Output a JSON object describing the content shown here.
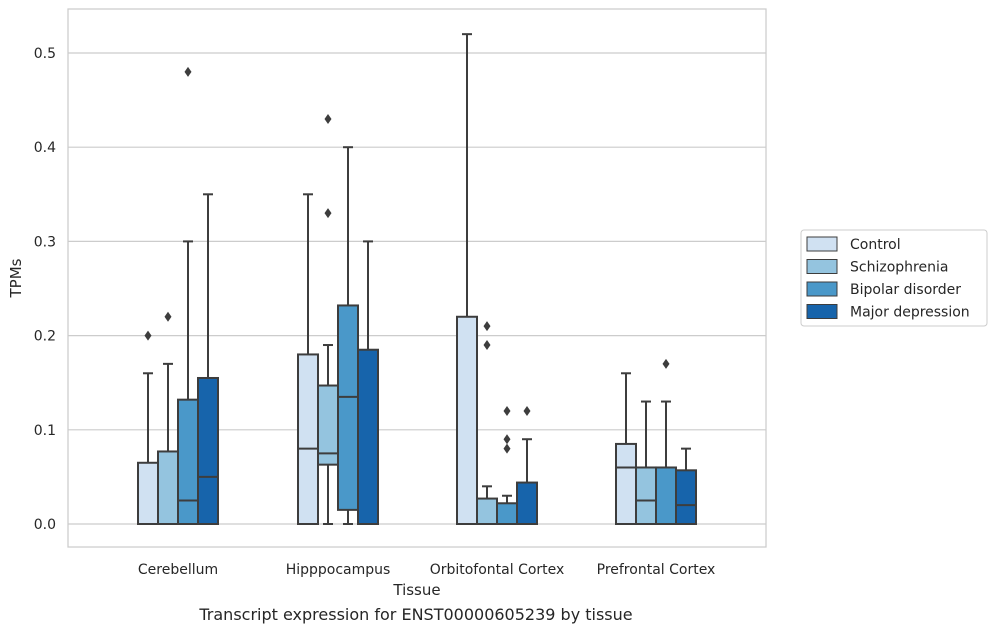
{
  "caption": "Transcript expression for ENST00000605239 by tissue",
  "chart_data": {
    "type": "box",
    "xlabel": "Tissue",
    "ylabel": "TPMs",
    "ylim": [
      -0.025,
      0.55
    ],
    "yticks": [
      0.0,
      0.1,
      0.2,
      0.3,
      0.4,
      0.5
    ],
    "ytick_labels": [
      "0.0",
      "0.1",
      "0.2",
      "0.3",
      "0.4",
      "0.5"
    ],
    "grid": "horizontal",
    "legend_position": "right-outside",
    "categories": [
      "Cerebellum",
      "Hipppocampus",
      "Orbitofontal Cortex",
      "Prefrontal Cortex"
    ],
    "series": [
      {
        "name": "Control",
        "color": "#d0e1f2",
        "boxes": [
          {
            "q1": 0.0,
            "median": 0.0,
            "q3": 0.065,
            "whisker_low": 0.0,
            "whisker_high": 0.16,
            "outliers": [
              0.2
            ]
          },
          {
            "q1": 0.0,
            "median": 0.08,
            "q3": 0.18,
            "whisker_low": 0.0,
            "whisker_high": 0.35,
            "outliers": []
          },
          {
            "q1": 0.0,
            "median": 0.0,
            "q3": 0.22,
            "whisker_low": 0.0,
            "whisker_high": 0.52,
            "outliers": []
          },
          {
            "q1": 0.0,
            "median": 0.06,
            "q3": 0.085,
            "whisker_low": 0.0,
            "whisker_high": 0.16,
            "outliers": []
          }
        ]
      },
      {
        "name": "Schizophrenia",
        "color": "#94c4df",
        "boxes": [
          {
            "q1": 0.0,
            "median": 0.0,
            "q3": 0.077,
            "whisker_low": 0.0,
            "whisker_high": 0.17,
            "outliers": [
              0.22
            ]
          },
          {
            "q1": 0.063,
            "median": 0.075,
            "q3": 0.147,
            "whisker_low": 0.0,
            "whisker_high": 0.19,
            "outliers": [
              0.33,
              0.43
            ]
          },
          {
            "q1": 0.0,
            "median": 0.0,
            "q3": 0.027,
            "whisker_low": 0.0,
            "whisker_high": 0.04,
            "outliers": [
              0.19,
              0.21
            ]
          },
          {
            "q1": 0.0,
            "median": 0.025,
            "q3": 0.06,
            "whisker_low": 0.0,
            "whisker_high": 0.13,
            "outliers": []
          }
        ]
      },
      {
        "name": "Bipolar disorder",
        "color": "#4a98c9",
        "boxes": [
          {
            "q1": 0.0,
            "median": 0.025,
            "q3": 0.132,
            "whisker_low": 0.0,
            "whisker_high": 0.3,
            "outliers": [
              0.48
            ]
          },
          {
            "q1": 0.015,
            "median": 0.135,
            "q3": 0.232,
            "whisker_low": 0.0,
            "whisker_high": 0.4,
            "outliers": []
          },
          {
            "q1": 0.0,
            "median": 0.0,
            "q3": 0.022,
            "whisker_low": 0.0,
            "whisker_high": 0.03,
            "outliers": [
              0.08,
              0.09,
              0.12
            ]
          },
          {
            "q1": 0.0,
            "median": 0.0,
            "q3": 0.06,
            "whisker_low": 0.0,
            "whisker_high": 0.13,
            "outliers": [
              0.17
            ]
          }
        ]
      },
      {
        "name": "Major depression",
        "color": "#1764ab",
        "boxes": [
          {
            "q1": 0.0,
            "median": 0.05,
            "q3": 0.155,
            "whisker_low": 0.0,
            "whisker_high": 0.35,
            "outliers": []
          },
          {
            "q1": 0.0,
            "median": 0.0,
            "q3": 0.185,
            "whisker_low": 0.0,
            "whisker_high": 0.3,
            "outliers": []
          },
          {
            "q1": 0.0,
            "median": 0.0,
            "q3": 0.044,
            "whisker_low": 0.0,
            "whisker_high": 0.09,
            "outliers": [
              0.12
            ]
          },
          {
            "q1": 0.0,
            "median": 0.02,
            "q3": 0.057,
            "whisker_low": 0.0,
            "whisker_high": 0.08,
            "outliers": []
          }
        ]
      }
    ]
  }
}
